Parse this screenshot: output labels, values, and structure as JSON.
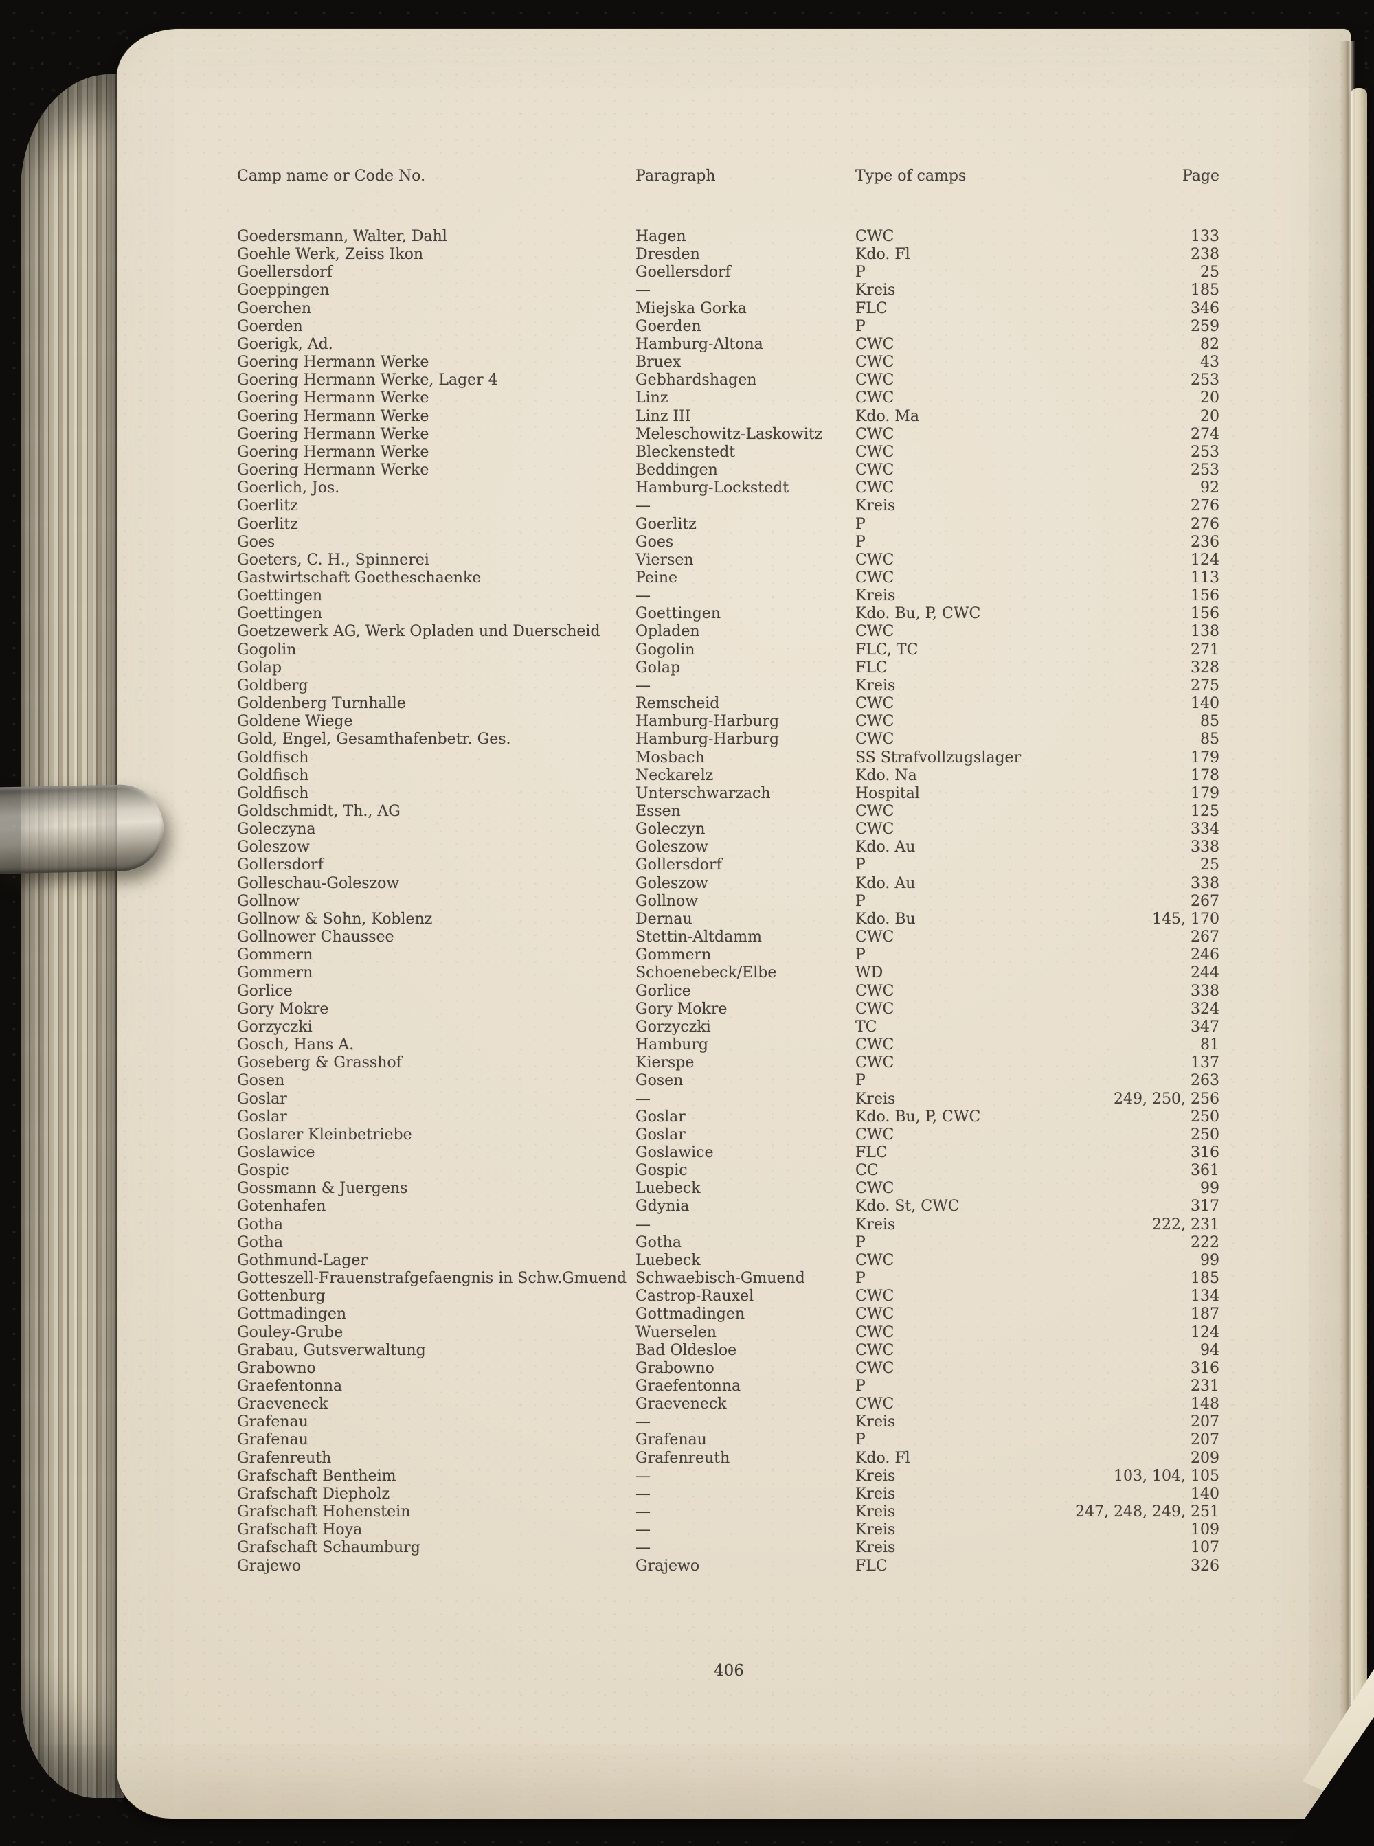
{
  "colors": {
    "paper": "#e8dfce",
    "ink": "#45403a",
    "background": "#0e0d0b"
  },
  "folio": "406",
  "header": {
    "camp_name": "Camp name or Code No.",
    "paragraph": "Paragraph",
    "type": "Type of camps",
    "page": "Page"
  },
  "table": {
    "rows": [
      {
        "name": "Goedersmann, Walter, Dahl",
        "paragraph": "Hagen",
        "type": "CWC",
        "pages": "133"
      },
      {
        "name": "Goehle Werk, Zeiss Ikon",
        "paragraph": "Dresden",
        "type": "Kdo. Fl",
        "pages": "238"
      },
      {
        "name": "Goellersdorf",
        "paragraph": "Goellersdorf",
        "type": "P",
        "pages": "25"
      },
      {
        "name": "Goeppingen",
        "paragraph": "—",
        "type": "Kreis",
        "pages": "185"
      },
      {
        "name": "Goerchen",
        "paragraph": "Miejska Gorka",
        "type": "FLC",
        "pages": "346"
      },
      {
        "name": "Goerden",
        "paragraph": "Goerden",
        "type": "P",
        "pages": "259"
      },
      {
        "name": "Goerigk, Ad.",
        "paragraph": "Hamburg-Altona",
        "type": "CWC",
        "pages": "82"
      },
      {
        "name": "Goering Hermann Werke",
        "paragraph": "Bruex",
        "type": "CWC",
        "pages": "43"
      },
      {
        "name": "Goering Hermann Werke, Lager 4",
        "paragraph": "Gebhardshagen",
        "type": "CWC",
        "pages": "253"
      },
      {
        "name": "Goering Hermann Werke",
        "paragraph": "Linz",
        "type": "CWC",
        "pages": "20"
      },
      {
        "name": "Goering Hermann Werke",
        "paragraph": "Linz III",
        "type": "Kdo. Ma",
        "pages": "20"
      },
      {
        "name": "Goering Hermann Werke",
        "paragraph": "Meleschowitz-Laskowitz",
        "type": "CWC",
        "pages": "274"
      },
      {
        "name": "Goering Hermann Werke",
        "paragraph": "Bleckenstedt",
        "type": "CWC",
        "pages": "253"
      },
      {
        "name": "Goering Hermann Werke",
        "paragraph": "Beddingen",
        "type": "CWC",
        "pages": "253"
      },
      {
        "name": "Goerlich, Jos.",
        "paragraph": "Hamburg-Lockstedt",
        "type": "CWC",
        "pages": "92"
      },
      {
        "name": "Goerlitz",
        "paragraph": "—",
        "type": "Kreis",
        "pages": "276"
      },
      {
        "name": "Goerlitz",
        "paragraph": "Goerlitz",
        "type": "P",
        "pages": "276"
      },
      {
        "name": "Goes",
        "paragraph": "Goes",
        "type": "P",
        "pages": "236"
      },
      {
        "name": "Goeters, C. H., Spinnerei",
        "paragraph": "Viersen",
        "type": "CWC",
        "pages": "124"
      },
      {
        "name": "Gastwirtschaft Goetheschaenke",
        "paragraph": "Peine",
        "type": "CWC",
        "pages": "113"
      },
      {
        "name": "Goettingen",
        "paragraph": "—",
        "type": "Kreis",
        "pages": "156"
      },
      {
        "name": "Goettingen",
        "paragraph": "Goettingen",
        "type": "Kdo. Bu, P, CWC",
        "pages": "156"
      },
      {
        "name": "Goetzewerk AG, Werk Opladen und Duerscheid",
        "paragraph": "Opladen",
        "type": "CWC",
        "pages": "138"
      },
      {
        "name": "Gogolin",
        "paragraph": "Gogolin",
        "type": "FLC, TC",
        "pages": "271"
      },
      {
        "name": "Golap",
        "paragraph": "Golap",
        "type": "FLC",
        "pages": "328"
      },
      {
        "name": "Goldberg",
        "paragraph": "—",
        "type": "Kreis",
        "pages": "275"
      },
      {
        "name": "Goldenberg Turnhalle",
        "paragraph": "Remscheid",
        "type": "CWC",
        "pages": "140"
      },
      {
        "name": "Goldene Wiege",
        "paragraph": "Hamburg-Harburg",
        "type": "CWC",
        "pages": "85"
      },
      {
        "name": "Gold, Engel, Gesamthafenbetr. Ges.",
        "paragraph": "Hamburg-Harburg",
        "type": "CWC",
        "pages": "85"
      },
      {
        "name": "Goldfisch",
        "paragraph": "Mosbach",
        "type": "SS Strafvollzugslager",
        "pages": "179"
      },
      {
        "name": "Goldfisch",
        "paragraph": "Neckarelz",
        "type": "Kdo. Na",
        "pages": "178"
      },
      {
        "name": "Goldfisch",
        "paragraph": "Unterschwarzach",
        "type": "Hospital",
        "pages": "179"
      },
      {
        "name": "Goldschmidt, Th., AG",
        "paragraph": "Essen",
        "type": "CWC",
        "pages": "125"
      },
      {
        "name": "Goleczyna",
        "paragraph": "Goleczyn",
        "type": "CWC",
        "pages": "334"
      },
      {
        "name": "Goleszow",
        "paragraph": "Goleszow",
        "type": "Kdo. Au",
        "pages": "338"
      },
      {
        "name": "Gollersdorf",
        "paragraph": "Gollersdorf",
        "type": "P",
        "pages": "25"
      },
      {
        "name": "Golleschau-Goleszow",
        "paragraph": "Goleszow",
        "type": "Kdo. Au",
        "pages": "338"
      },
      {
        "name": "Gollnow",
        "paragraph": "Gollnow",
        "type": "P",
        "pages": "267"
      },
      {
        "name": "Gollnow & Sohn, Koblenz",
        "paragraph": "Dernau",
        "type": "Kdo. Bu",
        "pages": "145, 170"
      },
      {
        "name": "Gollnower Chaussee",
        "paragraph": "Stettin-Altdamm",
        "type": "CWC",
        "pages": "267"
      },
      {
        "name": "Gommern",
        "paragraph": "Gommern",
        "type": "P",
        "pages": "246"
      },
      {
        "name": "Gommern",
        "paragraph": "Schoenebeck/Elbe",
        "type": "WD",
        "pages": "244"
      },
      {
        "name": "Gorlice",
        "paragraph": "Gorlice",
        "type": "CWC",
        "pages": "338"
      },
      {
        "name": "Gory Mokre",
        "paragraph": "Gory Mokre",
        "type": "CWC",
        "pages": "324"
      },
      {
        "name": "Gorzyczki",
        "paragraph": "Gorzyczki",
        "type": "TC",
        "pages": "347"
      },
      {
        "name": "Gosch, Hans A.",
        "paragraph": "Hamburg",
        "type": "CWC",
        "pages": "81"
      },
      {
        "name": "Goseberg & Grasshof",
        "paragraph": "Kierspe",
        "type": "CWC",
        "pages": "137"
      },
      {
        "name": "Gosen",
        "paragraph": "Gosen",
        "type": "P",
        "pages": "263"
      },
      {
        "name": "Goslar",
        "paragraph": "—",
        "type": "Kreis",
        "pages": "249, 250, 256"
      },
      {
        "name": "Goslar",
        "paragraph": "Goslar",
        "type": "Kdo. Bu, P, CWC",
        "pages": "250"
      },
      {
        "name": "Goslarer Kleinbetriebe",
        "paragraph": "Goslar",
        "type": "CWC",
        "pages": "250"
      },
      {
        "name": "Goslawice",
        "paragraph": "Goslawice",
        "type": "FLC",
        "pages": "316"
      },
      {
        "name": "Gospic",
        "paragraph": "Gospic",
        "type": "CC",
        "pages": "361"
      },
      {
        "name": "Gossmann & Juergens",
        "paragraph": "Luebeck",
        "type": "CWC",
        "pages": "99"
      },
      {
        "name": "Gotenhafen",
        "paragraph": "Gdynia",
        "type": "Kdo. St, CWC",
        "pages": "317"
      },
      {
        "name": "Gotha",
        "paragraph": "—",
        "type": "Kreis",
        "pages": "222, 231"
      },
      {
        "name": "Gotha",
        "paragraph": "Gotha",
        "type": "P",
        "pages": "222"
      },
      {
        "name": "Gothmund-Lager",
        "paragraph": "Luebeck",
        "type": "CWC",
        "pages": "99"
      },
      {
        "name": "Gotteszell-Frauenstrafgefaengnis in Schw.Gmuend",
        "paragraph": "Schwaebisch-Gmuend",
        "type": "P",
        "pages": "185"
      },
      {
        "name": "Gottenburg",
        "paragraph": "Castrop-Rauxel",
        "type": "CWC",
        "pages": "134"
      },
      {
        "name": "Gottmadingen",
        "paragraph": "Gottmadingen",
        "type": "CWC",
        "pages": "187"
      },
      {
        "name": "Gouley-Grube",
        "paragraph": "Wuerselen",
        "type": "CWC",
        "pages": "124"
      },
      {
        "name": "Grabau, Gutsverwaltung",
        "paragraph": "Bad Oldesloe",
        "type": "CWC",
        "pages": "94"
      },
      {
        "name": "Grabowno",
        "paragraph": "Grabowno",
        "type": "CWC",
        "pages": "316"
      },
      {
        "name": "Graefentonna",
        "paragraph": "Graefentonna",
        "type": "P",
        "pages": "231"
      },
      {
        "name": "Graeveneck",
        "paragraph": "Graeveneck",
        "type": "CWC",
        "pages": "148"
      },
      {
        "name": "Grafenau",
        "paragraph": "—",
        "type": "Kreis",
        "pages": "207"
      },
      {
        "name": "Grafenau",
        "paragraph": "Grafenau",
        "type": "P",
        "pages": "207"
      },
      {
        "name": "Grafenreuth",
        "paragraph": "Grafenreuth",
        "type": "Kdo. Fl",
        "pages": "209"
      },
      {
        "name": "Grafschaft Bentheim",
        "paragraph": "—",
        "type": "Kreis",
        "pages": "103, 104, 105"
      },
      {
        "name": "Grafschaft Diepholz",
        "paragraph": "—",
        "type": "Kreis",
        "pages": "140"
      },
      {
        "name": "Grafschaft Hohenstein",
        "paragraph": "—",
        "type": "Kreis",
        "pages": "247, 248, 249, 251"
      },
      {
        "name": "Grafschaft Hoya",
        "paragraph": "—",
        "type": "Kreis",
        "pages": "109"
      },
      {
        "name": "Grafschaft Schaumburg",
        "paragraph": "—",
        "type": "Kreis",
        "pages": "107"
      },
      {
        "name": "Grajewo",
        "paragraph": "Grajewo",
        "type": "FLC",
        "pages": "326"
      }
    ]
  }
}
